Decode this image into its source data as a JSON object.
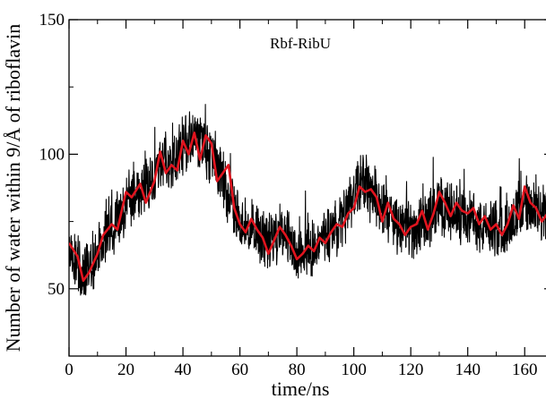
{
  "chart_data": {
    "type": "line",
    "title": "",
    "annotation": "Rbf-RibU",
    "xlabel": "time/ns",
    "ylabel": "Number of water within 9/Å of riboflavin",
    "xlim": [
      0,
      170
    ],
    "ylim": [
      25,
      150
    ],
    "xticks": [
      0,
      20,
      40,
      60,
      80,
      100,
      120,
      140,
      160
    ],
    "yticks": [
      50,
      100,
      150
    ],
    "grid": false,
    "legend": "none",
    "colors": {
      "raw": "#000000",
      "average": "#e0141e"
    },
    "series": [
      {
        "style": "raw",
        "x": [
          0,
          5,
          10,
          15,
          20,
          25,
          30,
          33,
          36,
          40,
          44,
          48,
          52,
          56,
          60,
          65,
          70,
          75,
          80,
          85,
          90,
          95,
          100,
          103,
          106,
          110,
          115,
          120,
          125,
          130,
          135,
          140,
          145,
          150,
          155,
          160,
          165,
          170
        ],
        "values": [
          66,
          55,
          63,
          72,
          82,
          88,
          92,
          98,
          95,
          103,
          105,
          102,
          96,
          85,
          75,
          72,
          68,
          72,
          63,
          65,
          69,
          73,
          85,
          90,
          87,
          79,
          74,
          72,
          75,
          81,
          78,
          76,
          73,
          72,
          76,
          81,
          77,
          79
        ]
      },
      {
        "style": "average",
        "x": [
          0,
          3,
          5,
          7,
          10,
          12,
          15,
          17,
          20,
          22,
          25,
          27,
          30,
          32,
          34,
          36,
          38,
          40,
          42,
          44,
          46,
          48,
          50,
          52,
          54,
          56,
          58,
          60,
          62,
          64,
          66,
          68,
          70,
          72,
          74,
          76,
          78,
          80,
          82,
          84,
          86,
          88,
          90,
          92,
          94,
          96,
          98,
          100,
          102,
          104,
          106,
          108,
          110,
          112,
          114,
          116,
          118,
          120,
          122,
          124,
          126,
          128,
          130,
          132,
          134,
          136,
          138,
          140,
          142,
          144,
          146,
          148,
          150,
          152,
          154,
          156,
          158,
          160,
          162,
          164,
          166,
          168,
          170
        ],
        "values": [
          67,
          62,
          53,
          56,
          63,
          70,
          74,
          72,
          86,
          84,
          89,
          82,
          90,
          101,
          93,
          96,
          94,
          105,
          100,
          108,
          98,
          107,
          104,
          90,
          93,
          96,
          80,
          74,
          71,
          76,
          72,
          69,
          63,
          68,
          73,
          70,
          66,
          61,
          63,
          66,
          64,
          69,
          67,
          71,
          74,
          73,
          78,
          80,
          88,
          86,
          87,
          84,
          75,
          82,
          76,
          74,
          70,
          73,
          74,
          79,
          72,
          78,
          86,
          82,
          77,
          82,
          79,
          78,
          80,
          74,
          77,
          72,
          74,
          70,
          74,
          81,
          76,
          88,
          82,
          80,
          75,
          78,
          81
        ]
      }
    ]
  }
}
